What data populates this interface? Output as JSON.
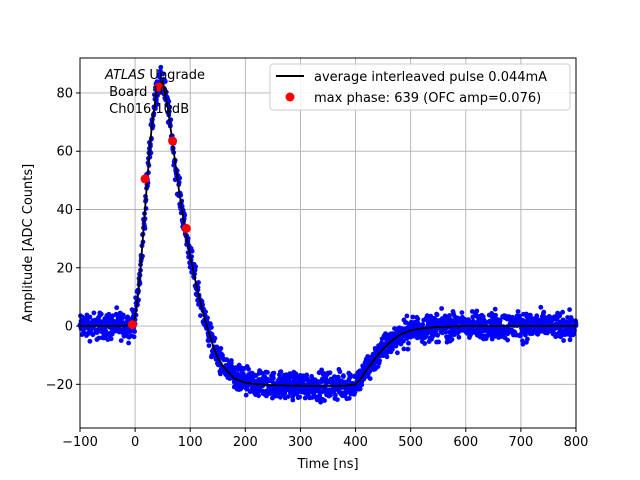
{
  "chart_data": {
    "type": "scatter",
    "xlabel": "Time [ns]",
    "ylabel": "Amplitude [ADC Counts]",
    "xlim": [
      -100,
      800
    ],
    "ylim": [
      -35,
      92
    ],
    "xticks": [
      -100,
      0,
      100,
      200,
      300,
      400,
      500,
      600,
      700,
      800
    ],
    "yticks": [
      -20,
      0,
      20,
      40,
      60,
      80
    ],
    "grid": true,
    "legend_placement": "top-right",
    "annotation": {
      "line1_italic": "ATLAS",
      "line1_rest": " Upgrade",
      "line2": " Board 10",
      "line3": " Ch016 10dB"
    },
    "series": [
      {
        "name": "average interleaved pulse 0.044mA",
        "kind": "line",
        "color": "#000000",
        "x": [
          -100,
          -20,
          -5,
          0,
          5,
          10,
          20,
          30,
          40,
          50,
          60,
          70,
          80,
          90,
          100,
          110,
          120,
          130,
          140,
          150,
          160,
          180,
          200,
          220,
          250,
          300,
          350,
          380,
          400,
          410,
          420,
          440,
          460,
          480,
          500,
          520,
          550,
          600,
          650,
          700,
          800
        ],
        "y": [
          0,
          0,
          0.5,
          3,
          10,
          20,
          45,
          68,
          82,
          84,
          74,
          60,
          46,
          34,
          24,
          15,
          7,
          0,
          -6,
          -11,
          -14,
          -18,
          -19.5,
          -20,
          -20.3,
          -20.5,
          -20.6,
          -20.5,
          -20,
          -18,
          -15,
          -10,
          -6,
          -3,
          -1.5,
          -0.8,
          -0.3,
          0,
          0,
          0,
          0
        ]
      },
      {
        "name": "samples",
        "kind": "scatter-band",
        "color": "#0000ff",
        "noise": 3.5
      },
      {
        "name": "max phase: 639 (OFC amp=0.076)",
        "kind": "points",
        "color": "#ff0000",
        "x": [
          -5,
          18,
          43,
          68,
          93
        ],
        "y": [
          0.5,
          50.5,
          82,
          63.5,
          33.5
        ]
      }
    ]
  }
}
